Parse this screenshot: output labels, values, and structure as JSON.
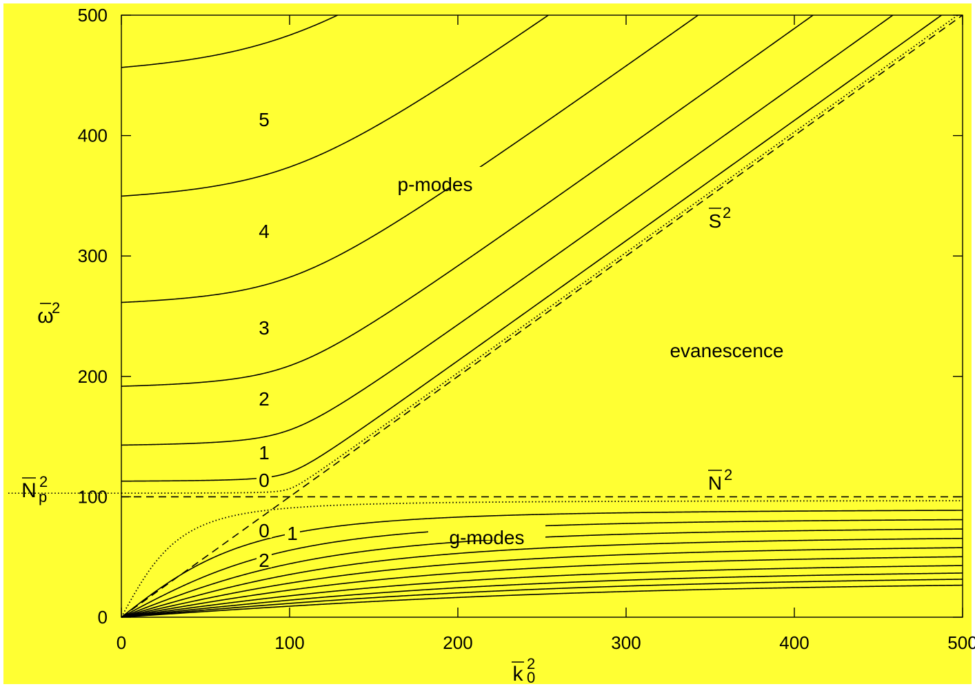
{
  "colors": {
    "background": "#ffff33",
    "frame": "#ffffff",
    "ink": "#000000"
  },
  "chart_data": {
    "type": "line",
    "xlim": [
      0,
      500
    ],
    "ylim": [
      0,
      500
    ],
    "x_ticks": [
      0,
      100,
      200,
      300,
      400,
      500
    ],
    "y_ticks": [
      0,
      100,
      200,
      300,
      400,
      500
    ],
    "x_tick_labels": [
      "0",
      "100",
      "200",
      "300",
      "400",
      "500"
    ],
    "y_tick_labels": [
      "0",
      "100",
      "200",
      "300",
      "400",
      "500"
    ],
    "xlabel": {
      "base": "k",
      "sub": "0",
      "sup": "2"
    },
    "ylabel": {
      "base": "ω",
      "sup": "2"
    },
    "np_label": {
      "base": "N",
      "sub": "p",
      "sup": "2"
    },
    "grid": false,
    "N2": 100,
    "Np2": 103,
    "p_modes": [
      {
        "order": "0",
        "omega2_at_0": 103,
        "style": "dotted"
      },
      {
        "order": "1",
        "omega2_at_0": 113
      },
      {
        "order": "2",
        "omega2_at_0": 143
      },
      {
        "order": "3",
        "omega2_at_0": 192
      },
      {
        "order": "4",
        "omega2_at_0": 262
      },
      {
        "order": "5",
        "omega2_at_0": 351
      },
      {
        "order": "6",
        "omega2_at_0": 459
      }
    ],
    "g_modes": [
      {
        "order": "0",
        "asymptote": 97,
        "style": "dotted"
      },
      {
        "order": "1",
        "asymptote": 90
      },
      {
        "order": "2",
        "asymptote": 83
      },
      {
        "order": "3",
        "asymptote": 76
      },
      {
        "order": "4",
        "asymptote": 69
      },
      {
        "order": "5",
        "asymptote": 62
      },
      {
        "order": "6",
        "asymptote": 55
      },
      {
        "order": "7",
        "asymptote": 48
      },
      {
        "order": "8",
        "asymptote": 42
      },
      {
        "order": "9",
        "asymptote": 37
      },
      {
        "order": "10",
        "asymptote": 32
      }
    ],
    "reference_curves": [
      {
        "name": "S2",
        "label_base": "S",
        "label_sup": "2",
        "style": "dashed",
        "relation": "omega2 = k0^2"
      },
      {
        "name": "N2",
        "label_base": "N",
        "label_sup": "2",
        "style": "dashed",
        "relation": "omega2 = 100"
      }
    ],
    "annotations": {
      "p_modes": "p-modes",
      "g_modes": "g-modes",
      "evanescence": "evanescence",
      "p_order_labels": [
        {
          "text": "0",
          "k": 85,
          "w": 111
        },
        {
          "text": "1",
          "k": 85,
          "w": 134
        },
        {
          "text": "2",
          "k": 85,
          "w": 178
        },
        {
          "text": "3",
          "k": 85,
          "w": 238
        },
        {
          "text": "4",
          "k": 85,
          "w": 318
        },
        {
          "text": "5",
          "k": 85,
          "w": 410
        }
      ],
      "g_order_labels": [
        {
          "text": "0",
          "k": 85,
          "w": 66
        },
        {
          "text": "1",
          "k": 101,
          "w": 64
        },
        {
          "text": "2",
          "k": 85,
          "w": 43
        }
      ]
    }
  }
}
